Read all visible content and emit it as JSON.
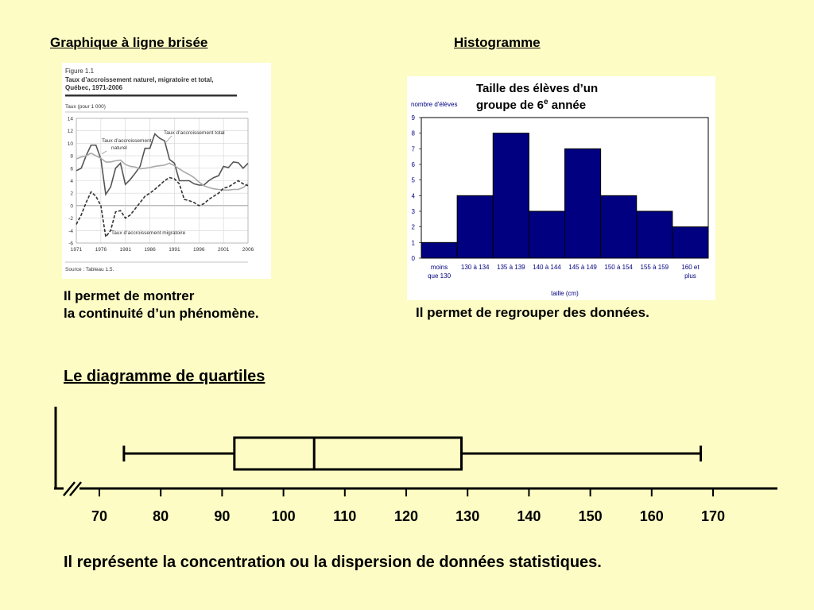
{
  "line_section": {
    "heading": "Graphique à ligne brisée",
    "desc_line1": "Il permet de montrer",
    "desc_line2": "la continuité d’un phénomène."
  },
  "hist_section": {
    "heading": "Histogramme",
    "desc": "Il permet de regrouper des données."
  },
  "box_section": {
    "heading": "Le diagramme de quartiles",
    "conclusion": "Il représente la concentration ou la dispersion de données statistiques."
  },
  "chart_data": [
    {
      "type": "line",
      "figure_label": "Figure 1.1",
      "title_line1": "Taux d’accroissement naturel, migratoire et total,",
      "title_line2": "Québec, 1971-2006",
      "ylabel": "Taux (pour 1 000)",
      "source": "Source :  Tableau 1.5.",
      "x": [
        1971,
        1972,
        1973,
        1974,
        1975,
        1976,
        1977,
        1978,
        1979,
        1980,
        1981,
        1982,
        1983,
        1984,
        1985,
        1986,
        1987,
        1988,
        1989,
        1990,
        1991,
        1992,
        1993,
        1994,
        1995,
        1996,
        1997,
        1998,
        1999,
        2000,
        2001,
        2002,
        2003,
        2004,
        2005,
        2006
      ],
      "xticks": [
        1971,
        1976,
        1981,
        1986,
        1991,
        1996,
        2001,
        2006
      ],
      "ylim": [
        -6,
        14
      ],
      "yticks": [
        -6,
        -4,
        -2,
        0,
        2,
        4,
        6,
        8,
        10,
        12,
        14
      ],
      "grid": true,
      "series": [
        {
          "name": "Taux d’accroissement total",
          "color": "#555555",
          "dash": "solid",
          "values": [
            5.6,
            6.0,
            8.0,
            9.7,
            9.7,
            7.5,
            1.8,
            3.0,
            6.0,
            6.8,
            3.4,
            4.2,
            5.2,
            6.3,
            9.2,
            9.2,
            11.5,
            10.8,
            10.4,
            7.4,
            6.8,
            4.0,
            4.0,
            4.0,
            3.5,
            3.3,
            3.3,
            4.0,
            4.5,
            4.8,
            6.3,
            6.1,
            7.0,
            6.9,
            6.0,
            6.8
          ]
        },
        {
          "name": "Taux d’accroissement naturel",
          "color": "#aaaaaa",
          "dash": "solid",
          "values": [
            7.5,
            7.8,
            8.0,
            8.4,
            8.0,
            7.6,
            7.0,
            7.0,
            7.2,
            7.3,
            6.6,
            6.3,
            6.2,
            5.9,
            6.0,
            6.1,
            6.3,
            6.4,
            6.5,
            6.8,
            6.4,
            5.9,
            5.4,
            5.0,
            4.5,
            3.8,
            3.2,
            2.9,
            2.7,
            2.6,
            2.5,
            2.5,
            2.6,
            2.6,
            2.9,
            3.5
          ]
        },
        {
          "name": "Taux d’accroissement migratoire",
          "color": "#333333",
          "dash": "dashed",
          "values": [
            -3.0,
            -1.5,
            0.5,
            2.2,
            1.5,
            0.0,
            -5.0,
            -4.0,
            -1.0,
            -0.8,
            -2.0,
            -1.5,
            -0.5,
            0.5,
            1.5,
            2.0,
            2.6,
            3.3,
            4.0,
            4.5,
            4.3,
            3.5,
            1.0,
            0.8,
            0.5,
            0.0,
            0.3,
            1.0,
            1.5,
            2.0,
            2.8,
            3.0,
            3.5,
            4.0,
            3.5,
            3.2
          ]
        }
      ],
      "annotations": [
        "Taux d’accroissement total",
        "Taux d’accroissement",
        "naturel",
        "Taux d’accroissement migratoire"
      ]
    },
    {
      "type": "bar",
      "title_line1": "Taille des élèves d’un",
      "title_line2_main": "groupe de 6",
      "title_line2_sup": "e",
      "title_line2_end": " année",
      "ylabel": "nombre d'élèves",
      "xlabel": "taille (cm)",
      "categories": [
        [
          "moins",
          "que 130"
        ],
        [
          "130 à 134"
        ],
        [
          "135 à 139"
        ],
        [
          "140 à 144"
        ],
        [
          "145 à 149"
        ],
        [
          "150 à 154"
        ],
        [
          "155 à 159"
        ],
        [
          "160 et",
          "plus"
        ]
      ],
      "values": [
        1,
        4,
        8,
        3,
        7,
        4,
        3,
        2
      ],
      "ylim": [
        0,
        9
      ],
      "yticks": [
        0,
        1,
        2,
        3,
        4,
        5,
        6,
        7,
        8,
        9
      ],
      "bar_color": "#000080"
    },
    {
      "type": "box",
      "min": 74,
      "q1": 92,
      "median": 105,
      "q3": 129,
      "max": 168,
      "ticks": [
        70,
        80,
        90,
        100,
        110,
        120,
        130,
        140,
        150,
        160,
        170
      ]
    }
  ]
}
